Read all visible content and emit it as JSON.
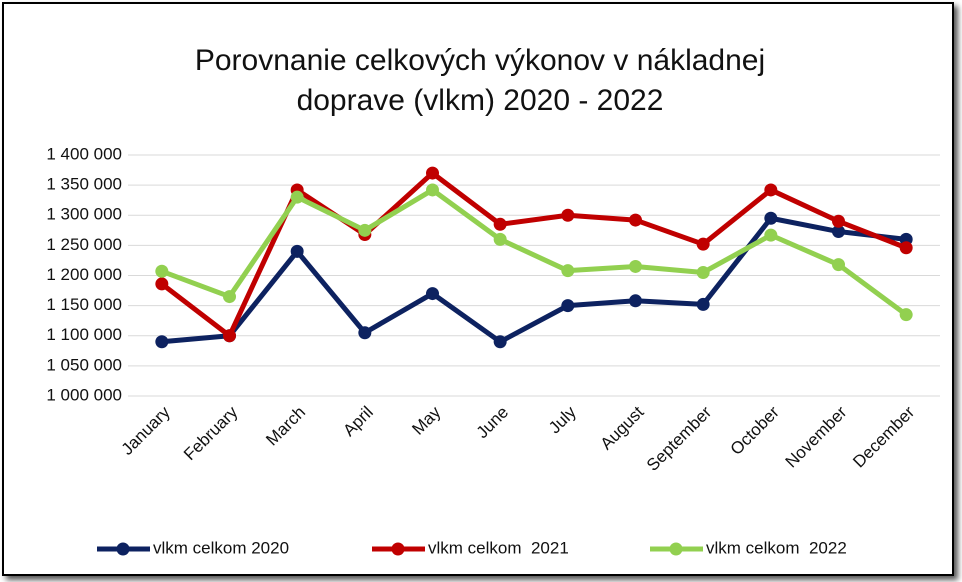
{
  "chart_data": {
    "type": "line",
    "title": [
      "Porovnanie celkových výkonov v nákladnej",
      "doprave (vlkm) 2020 - 2022"
    ],
    "categories": [
      "January",
      "February",
      "March",
      "April",
      "May",
      "June",
      "July",
      "August",
      "September",
      "October",
      "November",
      "December"
    ],
    "series": [
      {
        "name": "vlkm celkom 2020",
        "color": "#0d2260",
        "values": [
          1090000,
          1100000,
          1240000,
          1105000,
          1170000,
          1090000,
          1150000,
          1158000,
          1152000,
          1295000,
          1273000,
          1260000
        ]
      },
      {
        "name": "vlkm celkom  2021",
        "color": "#c00000",
        "values": [
          1186000,
          1100000,
          1342000,
          1268000,
          1370000,
          1285000,
          1300000,
          1292000,
          1252000,
          1342000,
          1290000,
          1246000
        ]
      },
      {
        "name": "vlkm celkom  2022",
        "color": "#92d050",
        "values": [
          1207000,
          1165000,
          1330000,
          1275000,
          1342000,
          1260000,
          1208000,
          1215000,
          1205000,
          1267000,
          1218000,
          1135000
        ]
      }
    ],
    "ylim": [
      1000000,
      1400000
    ],
    "yticks": [
      {
        "value": 1000000,
        "label": "1 000 000"
      },
      {
        "value": 1050000,
        "label": "1 050 000"
      },
      {
        "value": 1100000,
        "label": "1 100 000"
      },
      {
        "value": 1150000,
        "label": "1 150 000"
      },
      {
        "value": 1200000,
        "label": "1 200 000"
      },
      {
        "value": 1250000,
        "label": "1 250 000"
      },
      {
        "value": 1300000,
        "label": "1 300 000"
      },
      {
        "value": 1350000,
        "label": "1 350 000"
      },
      {
        "value": 1400000,
        "label": "1 400 000"
      }
    ],
    "grid": true,
    "legend": "bottom"
  }
}
